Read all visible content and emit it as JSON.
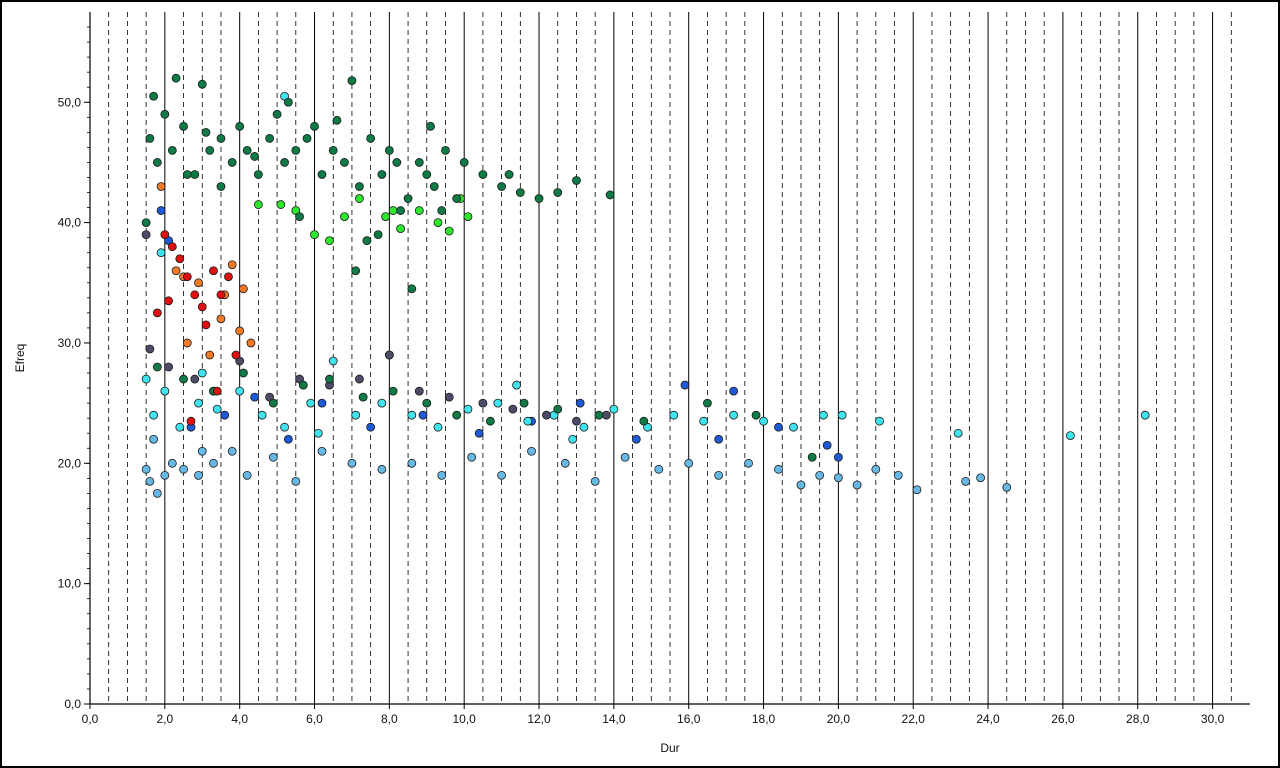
{
  "chart_data": {
    "type": "scatter",
    "x_label": "Dur",
    "y_label": "Efreq",
    "xlim": [
      0,
      31
    ],
    "ylim": [
      0,
      57.5
    ],
    "grid": true,
    "xticks": [
      {
        "value": 0,
        "label": "0,0"
      },
      {
        "value": 2,
        "label": "2,0"
      },
      {
        "value": 4,
        "label": "4,0"
      },
      {
        "value": 6,
        "label": "6,0"
      },
      {
        "value": 8,
        "label": "8,0"
      },
      {
        "value": 10,
        "label": "10,0"
      },
      {
        "value": 12,
        "label": "12,0"
      },
      {
        "value": 14,
        "label": "14,0"
      },
      {
        "value": 16,
        "label": "16,0"
      },
      {
        "value": 18,
        "label": "18,0"
      },
      {
        "value": 20,
        "label": "20,0"
      },
      {
        "value": 22,
        "label": "22,0"
      },
      {
        "value": 24,
        "label": "24,0"
      },
      {
        "value": 26,
        "label": "26,0"
      },
      {
        "value": 28,
        "label": "28,0"
      },
      {
        "value": 30,
        "label": "30,0"
      }
    ],
    "yticks": [
      {
        "value": 0,
        "label": "0,0"
      },
      {
        "value": 10,
        "label": "10,0"
      },
      {
        "value": 20,
        "label": "20,0"
      },
      {
        "value": 30,
        "label": "30,0"
      },
      {
        "value": 40,
        "label": "40,0"
      },
      {
        "value": 50,
        "label": "50,0"
      }
    ],
    "series": [
      {
        "color": "#68b8e6",
        "x": [
          1.5,
          1.6,
          1.8,
          2.0,
          2.2,
          2.5,
          2.9,
          3.3,
          3.8,
          4.2,
          4.9,
          5.5,
          6.2,
          7.0,
          7.8,
          8.6,
          9.4,
          10.2,
          11.0,
          11.8,
          12.7,
          13.5,
          14.3,
          15.2,
          16.0,
          16.8,
          17.6,
          18.4,
          19.0,
          19.5,
          20.0,
          20.5,
          21.0,
          21.6,
          22.1,
          23.4,
          23.8,
          24.5,
          1.7,
          3.0
        ],
        "values": [
          19.5,
          18.5,
          17.5,
          19,
          20,
          19.5,
          19,
          20,
          21,
          19,
          20.5,
          18.5,
          21,
          20,
          19.5,
          20,
          19,
          20.5,
          19,
          21,
          20,
          18.5,
          20.5,
          19.5,
          20,
          19,
          20,
          19.5,
          18.2,
          19,
          18.8,
          18.2,
          19.5,
          19,
          17.8,
          18.5,
          18.8,
          18,
          22,
          21
        ]
      },
      {
        "color": "#1e5ad8",
        "x": [
          1.9,
          2.7,
          3.6,
          4.4,
          5.3,
          6.2,
          7.5,
          8.9,
          10.4,
          11.8,
          13.1,
          14.6,
          15.9,
          16.8,
          17.2,
          18.4,
          19.7,
          20.0,
          2.1
        ],
        "values": [
          41,
          23,
          24,
          25.5,
          22,
          25,
          23,
          24,
          22.5,
          23.5,
          25,
          22,
          26.5,
          22,
          26,
          23,
          21.5,
          20.5,
          38.5
        ]
      },
      {
        "color": "#40e4ee",
        "x": [
          1.5,
          1.7,
          2.0,
          2.4,
          2.9,
          3.4,
          4.0,
          4.6,
          5.2,
          5.9,
          6.5,
          7.1,
          7.8,
          8.6,
          9.3,
          10.1,
          10.9,
          11.7,
          12.4,
          13.2,
          14.0,
          14.9,
          15.6,
          16.4,
          17.2,
          18.0,
          18.8,
          19.6,
          20.1,
          21.1,
          23.2,
          26.2,
          28.2,
          6.1,
          8.0,
          11.4,
          5.2,
          1.9,
          3.0,
          12.9
        ],
        "values": [
          27,
          24,
          26,
          23,
          25,
          24.5,
          26,
          24,
          23,
          25,
          28.5,
          24,
          25,
          24,
          23,
          24.5,
          25,
          23.5,
          24,
          23,
          24.5,
          23,
          24,
          23.5,
          24,
          23.5,
          23,
          24,
          24,
          23.5,
          22.5,
          22.3,
          24,
          22.5,
          29,
          26.5,
          50.5,
          37.5,
          27.5,
          22
        ]
      },
      {
        "color": "#4c4c68",
        "x": [
          1.6,
          2.1,
          2.8,
          3.3,
          4.0,
          4.8,
          5.6,
          6.4,
          7.2,
          8.0,
          8.8,
          9.6,
          10.5,
          11.3,
          12.2,
          13.0,
          13.8,
          1.5
        ],
        "values": [
          29.5,
          28,
          27,
          26,
          28.5,
          25.5,
          27,
          26.5,
          27,
          29,
          26,
          25.5,
          25,
          24.5,
          24,
          23.5,
          24,
          39
        ]
      },
      {
        "color": "#0f7a45",
        "x": [
          1.8,
          2.5,
          3.3,
          4.1,
          4.9,
          5.7,
          6.4,
          7.3,
          8.1,
          9.0,
          9.8,
          10.7,
          11.6,
          12.5,
          13.6,
          14.8,
          16.5,
          17.8,
          19.3
        ],
        "values": [
          28,
          27,
          26,
          27.5,
          25,
          26.5,
          27,
          25.5,
          26,
          25,
          24,
          23.5,
          25,
          24.5,
          24,
          23.5,
          25,
          24,
          20.5
        ]
      },
      {
        "color": "#f07a28",
        "x": [
          1.9,
          2.3,
          2.6,
          2.9,
          3.2,
          3.6,
          3.8,
          4.0,
          4.1,
          4.3,
          2.5,
          3.5
        ],
        "values": [
          43,
          36,
          30,
          35,
          29,
          34,
          36.5,
          31,
          34.5,
          30,
          35.5,
          32
        ]
      },
      {
        "color": "#e01010",
        "x": [
          1.8,
          2.0,
          2.2,
          2.4,
          2.6,
          2.8,
          3.0,
          3.1,
          3.3,
          3.5,
          3.7,
          3.9,
          2.1,
          3.4,
          2.7
        ],
        "values": [
          32.5,
          39,
          38,
          37,
          35.5,
          34,
          33,
          31.5,
          36,
          34,
          35.5,
          29,
          33.5,
          26,
          23.5
        ]
      },
      {
        "color": "#2ee82e",
        "x": [
          5.5,
          6.0,
          6.8,
          7.2,
          7.9,
          8.3,
          8.8,
          9.3,
          9.6,
          10.1,
          6.4,
          4.5,
          8.1,
          9.9,
          5.1
        ],
        "values": [
          41,
          39,
          40.5,
          42,
          40.5,
          39.5,
          41,
          40,
          39.3,
          40.5,
          38.5,
          41.5,
          41,
          42,
          41.5
        ]
      },
      {
        "color": "#0f7a45",
        "x": [
          1.6,
          1.8,
          2.0,
          2.2,
          2.5,
          2.8,
          3.0,
          3.2,
          3.5,
          3.8,
          4.0,
          4.2,
          4.5,
          4.8,
          5.0,
          5.2,
          5.5,
          5.8,
          6.0,
          6.2,
          6.5,
          6.8,
          7.0,
          7.2,
          7.5,
          7.8,
          8.0,
          8.2,
          8.5,
          8.8,
          9.0,
          9.2,
          9.5,
          9.8,
          10.0,
          10.5,
          11.0,
          11.5,
          12.0,
          12.5,
          13.0,
          13.9,
          1.7,
          2.3,
          3.1,
          4.4,
          5.3,
          6.6,
          7.4,
          8.3,
          9.1,
          7.1,
          1.5,
          2.6,
          8.6,
          3.5,
          5.6,
          7.7,
          9.4,
          11.2
        ],
        "values": [
          47,
          45,
          49,
          46,
          48,
          44,
          51.5,
          46,
          47,
          45,
          48,
          46,
          44,
          47,
          49,
          45,
          46,
          47,
          48,
          44,
          46,
          45,
          51.8,
          43,
          47,
          44,
          46,
          45,
          42,
          45,
          44,
          43,
          46,
          42,
          45,
          44,
          43,
          42.5,
          42,
          42.5,
          43.5,
          42.3,
          50.5,
          52,
          47.5,
          45.5,
          50,
          48.5,
          38.5,
          41,
          48,
          36,
          40,
          44,
          34.5,
          43,
          40.5,
          39,
          41,
          44
        ]
      }
    ]
  }
}
